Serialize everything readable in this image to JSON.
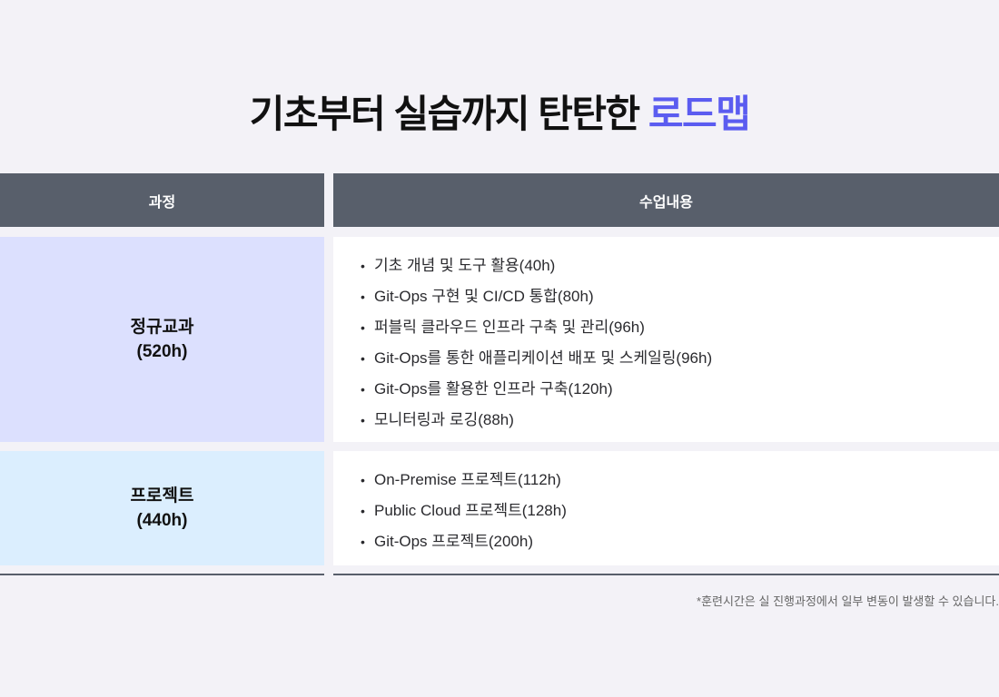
{
  "title": {
    "main": "기초부터 실습까지 탄탄한 ",
    "accent": "로드맵",
    "accent_color": "#5b5cf0"
  },
  "table": {
    "headers": [
      "과정",
      "수업내용"
    ],
    "rows": [
      {
        "course": "정규교과",
        "hours": "(520h)",
        "items": [
          "기초 개념 및 도구 활용(40h)",
          "Git-Ops 구현 및 CI/CD 통합(80h)",
          "퍼블릭 클라우드 인프라 구축 및 관리(96h)",
          "Git-Ops를 통한 애플리케이션 배포 및 스케일링(96h)",
          "Git-Ops를 활용한 인프라 구축(120h)",
          "모니터링과 로깅(88h)"
        ]
      },
      {
        "course": "프로젝트",
        "hours": "(440h)",
        "items": [
          "On-Premise 프로젝트(112h)",
          "Public Cloud 프로젝트(128h)",
          "Git-Ops 프로젝트(200h)"
        ]
      }
    ]
  },
  "footnote": "*훈련시간은 실 진행과정에서 일부 변동이 발생할 수 있습니다."
}
